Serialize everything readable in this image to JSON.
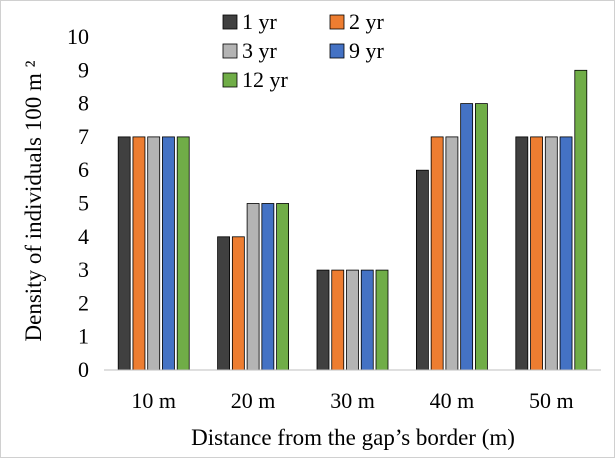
{
  "chart_data": {
    "type": "bar",
    "xlabel": "Distance from the gap’s border (m)",
    "ylabel": "Density of individuals 100 m ²",
    "ylim": [
      0,
      10
    ],
    "yticks": [
      "0",
      "1",
      "2",
      "3",
      "4",
      "5",
      "6",
      "7",
      "8",
      "9",
      "10"
    ],
    "grid": false,
    "legend_position": "top",
    "categories": [
      "10 m",
      "20 m",
      "30 m",
      "40 m",
      "50 m"
    ],
    "series": [
      {
        "name": "1 yr",
        "color": "#404040",
        "values": [
          7,
          4,
          3,
          6,
          7
        ]
      },
      {
        "name": "2 yr",
        "color": "#ED7D31",
        "values": [
          7,
          4,
          3,
          7,
          7
        ]
      },
      {
        "name": "3 yr",
        "color": "#B4B4B4",
        "values": [
          7,
          5,
          3,
          7,
          7
        ]
      },
      {
        "name": "9 yr",
        "color": "#4472C4",
        "values": [
          7,
          5,
          3,
          8,
          7
        ]
      },
      {
        "name": "12 yr",
        "color": "#70AD47",
        "values": [
          7,
          5,
          3,
          8,
          9
        ]
      }
    ]
  }
}
